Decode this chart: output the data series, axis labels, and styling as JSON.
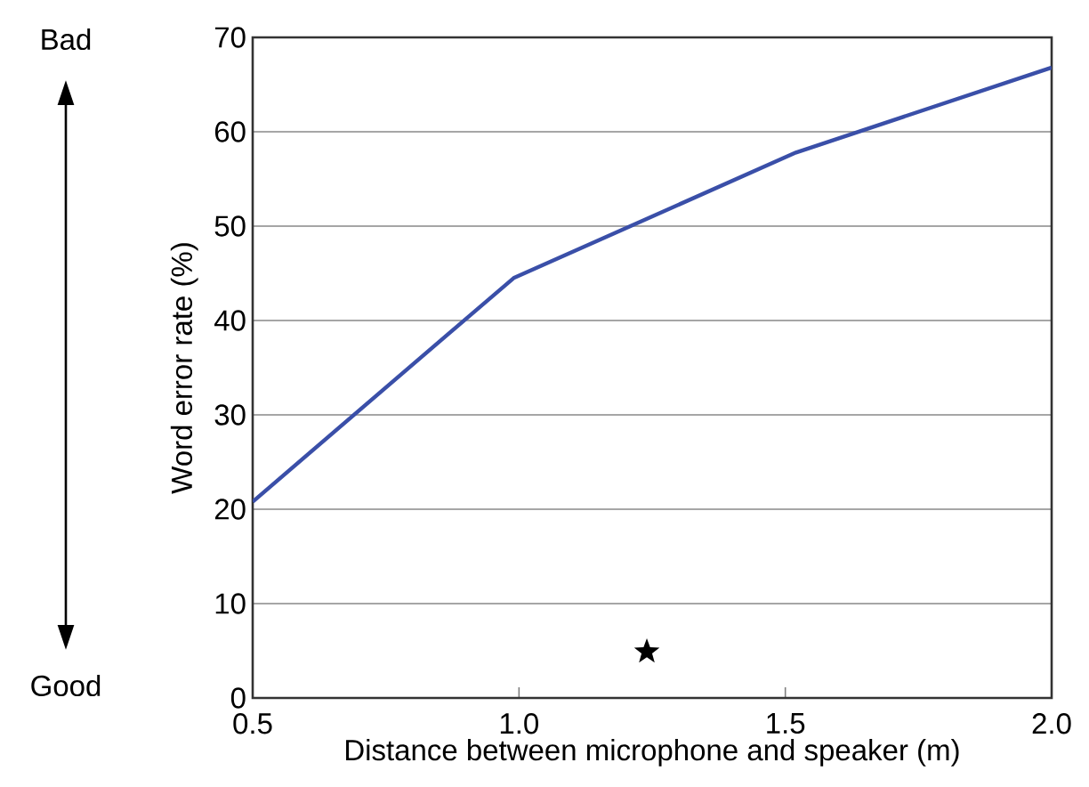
{
  "chart_data": {
    "type": "line",
    "xlabel": "Distance between microphone and speaker (m)",
    "ylabel": "Word error rate (%)",
    "xlim": [
      0.5,
      2.0
    ],
    "ylim": [
      0,
      70
    ],
    "xticks": [
      {
        "value": 0.5,
        "label": "0.5"
      },
      {
        "value": 1.0,
        "label": "1.0"
      },
      {
        "value": 1.5,
        "label": "1.5"
      },
      {
        "value": 2.0,
        "label": "2.0"
      }
    ],
    "yticks": [
      0,
      10,
      20,
      30,
      40,
      50,
      60,
      70
    ],
    "grid": "y",
    "series": [
      {
        "color": "#3a4fa8",
        "x": [
          0.5,
          0.99,
          1.52,
          2.0
        ],
        "values": [
          20.8,
          44.5,
          57.8,
          66.8
        ]
      },
      {
        "type": "scatter",
        "marker": "star",
        "color": "#000000",
        "x": [
          1.24
        ],
        "values": [
          4.9
        ]
      }
    ],
    "annotations": [
      "Bad",
      "Good"
    ]
  }
}
